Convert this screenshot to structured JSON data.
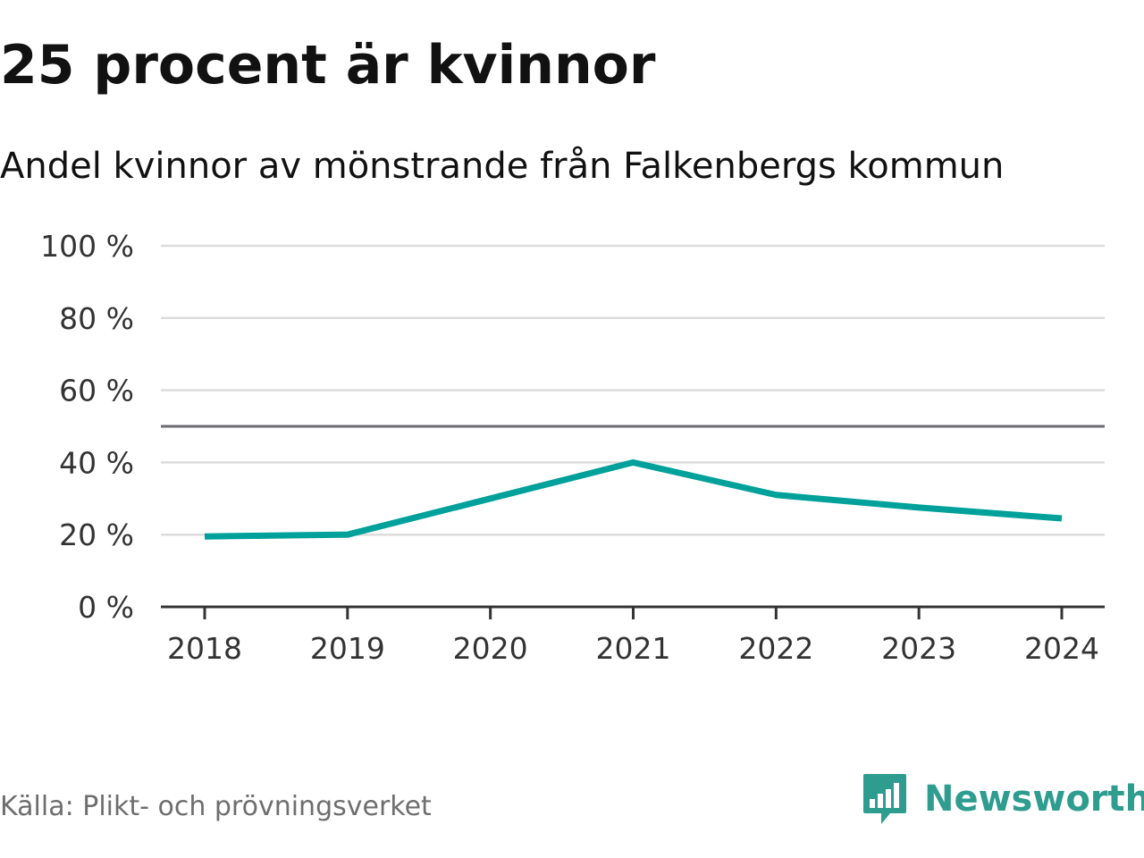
{
  "chart_data": {
    "type": "line",
    "title": "25 procent är kvinnor",
    "subtitle": "Andel kvinnor av mönstrande från Falkenbergs kommun",
    "x": [
      "2018",
      "2019",
      "2020",
      "2021",
      "2022",
      "2023",
      "2024"
    ],
    "series": [
      {
        "name": "Andel kvinnor",
        "values": [
          19.5,
          20.0,
          30.0,
          40.0,
          31.0,
          27.5,
          24.5
        ],
        "color": "#00a19a"
      }
    ],
    "reference_line": {
      "value": 50,
      "color": "#6b6b73"
    },
    "ylim": [
      0,
      100
    ],
    "yticks": [
      0,
      20,
      40,
      60,
      80,
      100
    ],
    "ytick_labels": [
      "0 %",
      "20 %",
      "40 %",
      "60 %",
      "80 %",
      "100 %"
    ],
    "grid": true,
    "legend": "none"
  },
  "footer": {
    "source": "Källa: Plikt- och prövningsverket",
    "brand": "Newsworthy",
    "brand_color": "#2e9c8f",
    "logo_icon": "newsworthy-bar-chart-bubble-icon"
  }
}
